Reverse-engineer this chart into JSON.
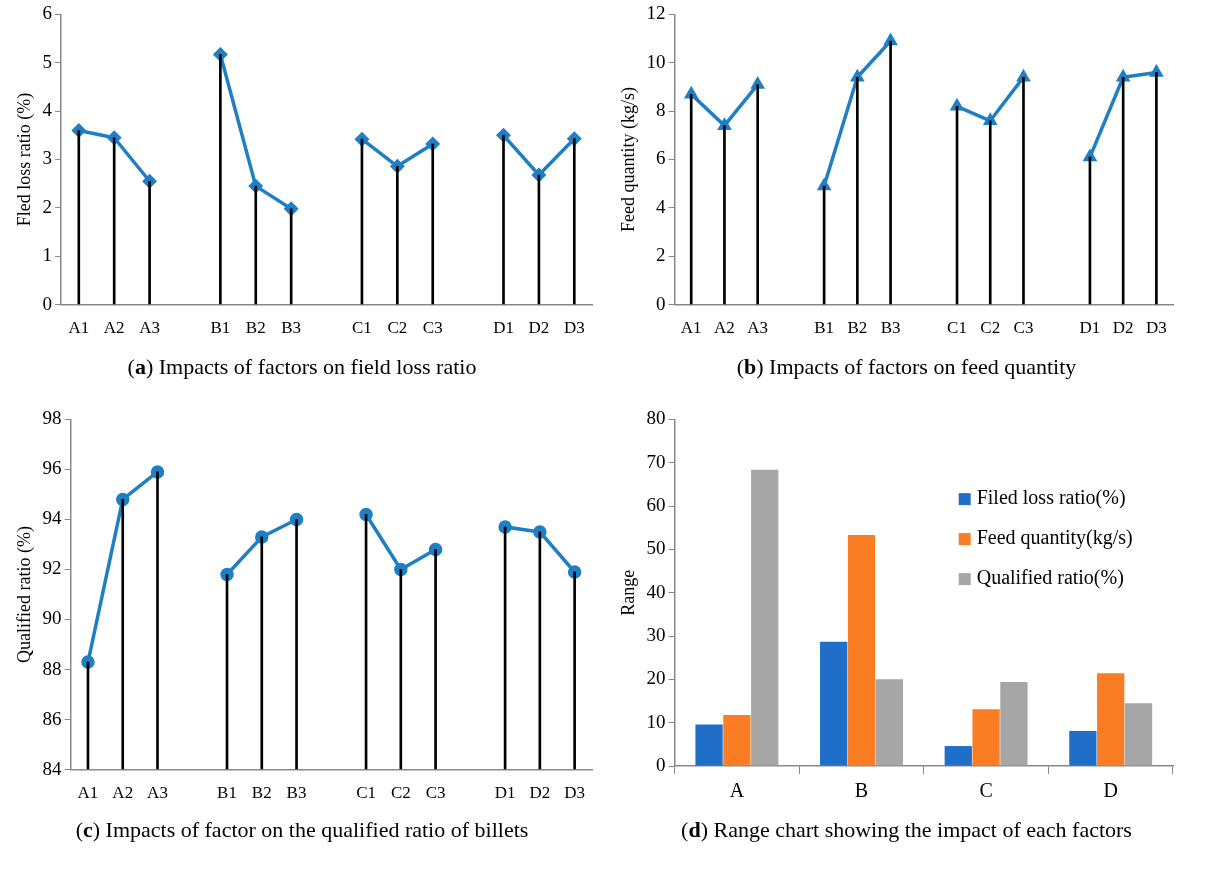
{
  "chart_data": [
    {
      "type": "line",
      "title": "(a) Impacts of factors on field loss ratio",
      "ylabel": "Fled loss ratio (%)",
      "categories": [
        "A1",
        "A2",
        "A3",
        null,
        "B1",
        "B2",
        "B3",
        null,
        "C1",
        "C2",
        "C3",
        null,
        "D1",
        "D2",
        "D3"
      ],
      "series": [
        {
          "type": "bar",
          "color": "#000000",
          "values": [
            3.6,
            3.45,
            2.55,
            null,
            5.17,
            2.45,
            1.98,
            null,
            3.42,
            2.86,
            3.32,
            null,
            3.5,
            2.68,
            3.43
          ]
        },
        {
          "color": "#1f7fc4",
          "values": [
            3.6,
            3.45,
            2.55,
            null,
            5.17,
            2.45,
            1.98,
            null,
            3.42,
            2.86,
            3.32,
            null,
            3.5,
            2.68,
            3.43
          ]
        }
      ],
      "ylim": [
        0,
        6
      ],
      "yticks": [
        0,
        1,
        2,
        3,
        4,
        5,
        6
      ],
      "marker": "diamond",
      "grid": false,
      "legend": false
    },
    {
      "type": "line",
      "title": "(b) Impacts of factors on feed quantity",
      "ylabel": "Feed quantity (kg/s)",
      "categories": [
        "A1",
        "A2",
        "A3",
        null,
        "B1",
        "B2",
        "B3",
        null,
        "C1",
        "C2",
        "C3",
        null,
        "D1",
        "D2",
        "D3"
      ],
      "series": [
        {
          "type": "bar",
          "color": "#000000",
          "values": [
            8.7,
            7.4,
            9.1,
            null,
            4.9,
            9.4,
            10.9,
            null,
            8.2,
            7.6,
            9.4,
            null,
            6.1,
            9.4,
            9.6
          ]
        },
        {
          "color": "#1f7fc4",
          "values": [
            8.7,
            7.4,
            9.1,
            null,
            4.9,
            9.4,
            10.9,
            null,
            8.2,
            7.6,
            9.4,
            null,
            6.1,
            9.4,
            9.6
          ]
        }
      ],
      "ylim": [
        0,
        12
      ],
      "yticks": [
        0,
        2,
        4,
        6,
        8,
        10,
        12
      ],
      "marker": "triangle",
      "grid": false,
      "legend": false
    },
    {
      "type": "line",
      "title": "(c) Impacts of factor on the qualified ratio of billets",
      "ylabel": "Qualified ratio (%)",
      "categories": [
        "A1",
        "A2",
        "A3",
        null,
        "B1",
        "B2",
        "B3",
        null,
        "C1",
        "C2",
        "C3",
        null,
        "D1",
        "D2",
        "D3"
      ],
      "series": [
        {
          "type": "bar",
          "color": "#000000",
          "values": [
            88.3,
            94.8,
            95.9,
            null,
            91.8,
            93.3,
            94.0,
            null,
            94.2,
            92.0,
            92.8,
            null,
            93.7,
            93.5,
            91.9
          ]
        },
        {
          "color": "#1f7fc4",
          "values": [
            88.3,
            94.8,
            95.9,
            null,
            91.8,
            93.3,
            94.0,
            null,
            94.2,
            92.0,
            92.8,
            null,
            93.7,
            93.5,
            91.9
          ]
        }
      ],
      "ylim": [
        84,
        98
      ],
      "yticks": [
        84,
        86,
        88,
        90,
        92,
        94,
        96,
        98
      ],
      "marker": "circle",
      "grid": false,
      "legend": false
    },
    {
      "type": "bar",
      "title": "(d) Range chart showing the impact of each factors",
      "ylabel": "Range",
      "categories": [
        "A",
        "B",
        "C",
        "D"
      ],
      "series": [
        {
          "name": "Filed loss ratio(%)",
          "color": "#1f6fc9",
          "values": [
            9.6,
            28.7,
            4.6,
            8.1
          ]
        },
        {
          "name": "Feed quantity(kg/s)",
          "color": "#fb7d23",
          "values": [
            11.8,
            53.3,
            13.1,
            21.4
          ]
        },
        {
          "name": "Qualified ratio(%)",
          "color": "#a6a6a6",
          "values": [
            68.4,
            20.0,
            19.4,
            14.5
          ]
        }
      ],
      "ylim": [
        0,
        80
      ],
      "yticks": [
        0,
        10,
        20,
        30,
        40,
        50,
        60,
        70,
        80
      ],
      "grid": false,
      "legend": "top right"
    }
  ]
}
